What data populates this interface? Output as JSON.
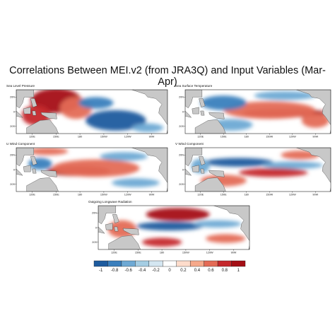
{
  "figure": {
    "title": "Correlations Between MEI.v2 (from JRA3Q) and Input Variables (Mar-Apr)"
  },
  "colors": {
    "land": "#c8c8c8",
    "palette": [
      "#1d5b9e",
      "#3a7fbd",
      "#6ea9d4",
      "#a5cde3",
      "#d4e6f1",
      "#ffffff",
      "#fddccb",
      "#f6a98b",
      "#e46b56",
      "#c5282c",
      "#a50f15"
    ]
  },
  "chart_data": [
    {
      "type": "heatmap",
      "name": "Sea Level Pressure",
      "x_ticks": [
        "120E",
        "150E",
        "180",
        "150W",
        "120W",
        "90W"
      ],
      "y_ticks": [
        "20N",
        "0",
        "20S"
      ],
      "features": [
        {
          "value": 0.9,
          "lon": 150,
          "lat": 15,
          "rx": 32,
          "ry": 17
        },
        {
          "value": 0.7,
          "lon": 125,
          "lat": -5,
          "rx": 18,
          "ry": 14
        },
        {
          "value": 0.5,
          "lon": 175,
          "lat": 5,
          "rx": 20,
          "ry": 15
        },
        {
          "value": -0.8,
          "lon": 225,
          "lat": -12,
          "rx": 38,
          "ry": 14
        },
        {
          "value": -0.6,
          "lon": 200,
          "lat": 12,
          "rx": 22,
          "ry": 8
        },
        {
          "value": -0.4,
          "lon": 265,
          "lat": -22,
          "rx": 20,
          "ry": 6
        }
      ]
    },
    {
      "type": "heatmap",
      "name": "Sea Surface Temperature",
      "x_ticks": [
        "120E",
        "150E",
        "180",
        "150W",
        "120W",
        "90W"
      ],
      "y_ticks": [
        "20N",
        "0",
        "20S"
      ],
      "features": [
        {
          "value": 0.95,
          "lon": 230,
          "lat": -2,
          "rx": 55,
          "ry": 6
        },
        {
          "value": 0.6,
          "lon": 210,
          "lat": 2,
          "rx": 60,
          "ry": 12
        },
        {
          "value": 0.4,
          "lon": 270,
          "lat": -12,
          "rx": 18,
          "ry": 10
        },
        {
          "value": -0.7,
          "lon": 150,
          "lat": 12,
          "rx": 30,
          "ry": 10
        },
        {
          "value": -0.5,
          "lon": 160,
          "lat": -18,
          "rx": 28,
          "ry": 8
        },
        {
          "value": -0.4,
          "lon": 230,
          "lat": 22,
          "rx": 40,
          "ry": 6
        }
      ]
    },
    {
      "type": "heatmap",
      "name": "U Wind Component",
      "x_ticks": [
        "120E",
        "150E",
        "180",
        "150W",
        "120W",
        "90W"
      ],
      "y_ticks": [
        "20N",
        "0",
        "20S"
      ],
      "features": [
        {
          "value": 0.95,
          "lon": 178,
          "lat": -2,
          "rx": 40,
          "ry": 7
        },
        {
          "value": 0.6,
          "lon": 200,
          "lat": 2,
          "rx": 55,
          "ry": 12
        },
        {
          "value": 0.6,
          "lon": 140,
          "lat": 25,
          "rx": 25,
          "ry": 5
        },
        {
          "value": -0.6,
          "lon": 130,
          "lat": 8,
          "rx": 15,
          "ry": 8
        },
        {
          "value": -0.5,
          "lon": 235,
          "lat": 18,
          "rx": 30,
          "ry": 6
        },
        {
          "value": -0.4,
          "lon": 250,
          "lat": -18,
          "rx": 30,
          "ry": 6
        }
      ]
    },
    {
      "type": "heatmap",
      "name": "V Wind Component",
      "x_ticks": [
        "120E",
        "150E",
        "180",
        "150W",
        "120W",
        "90W"
      ],
      "y_ticks": [
        "20N",
        "0",
        "20S"
      ],
      "features": [
        {
          "value": -0.8,
          "lon": 170,
          "lat": 10,
          "rx": 45,
          "ry": 6
        },
        {
          "value": -0.5,
          "lon": 240,
          "lat": 6,
          "rx": 40,
          "ry": 5
        },
        {
          "value": 0.7,
          "lon": 215,
          "lat": -4,
          "rx": 45,
          "ry": 6
        },
        {
          "value": 0.5,
          "lon": 150,
          "lat": -15,
          "rx": 30,
          "ry": 8
        },
        {
          "value": 0.4,
          "lon": 250,
          "lat": 20,
          "rx": 25,
          "ry": 6
        },
        {
          "value": -0.4,
          "lon": 120,
          "lat": 5,
          "rx": 12,
          "ry": 10
        }
      ]
    },
    {
      "type": "heatmap",
      "name": "Outgoing Longwave Radiation",
      "x_ticks": [
        "120E",
        "150E",
        "180",
        "150W",
        "120W",
        "90W"
      ],
      "y_ticks": [
        "20N",
        "0",
        "20S"
      ],
      "features": [
        {
          "value": 0.95,
          "lon": 200,
          "lat": 18,
          "rx": 40,
          "ry": 9
        },
        {
          "value": 0.6,
          "lon": 130,
          "lat": -2,
          "rx": 18,
          "ry": 12
        },
        {
          "value": 0.7,
          "lon": 180,
          "lat": -20,
          "rx": 25,
          "ry": 6
        },
        {
          "value": -0.9,
          "lon": 190,
          "lat": 2,
          "rx": 42,
          "ry": 6
        },
        {
          "value": -0.5,
          "lon": 250,
          "lat": 5,
          "rx": 30,
          "ry": 5
        },
        {
          "value": 0.5,
          "lon": 260,
          "lat": -15,
          "rx": 25,
          "ry": 6
        }
      ]
    }
  ],
  "colorbar": {
    "labels": [
      "-1",
      "-0.8",
      "-0.6",
      "-0.4",
      "-0.2",
      "0",
      "0.2",
      "0.4",
      "0.6",
      "0.8",
      "1"
    ]
  }
}
